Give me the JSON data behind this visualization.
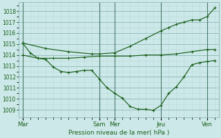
{
  "bg_color": "#cce8e8",
  "grid_color_major": "#8cb8b8",
  "grid_color_minor": "#b8d8d8",
  "vline_color": "#4a7a6a",
  "line_color": "#1a5f1a",
  "marker_color": "#1a5f1a",
  "xlabel": "Pression niveau de la mer( hPa )",
  "xlabel_color": "#1a5f1a",
  "ylabel_color": "#1a5f1a",
  "ylim": [
    1008.3,
    1018.8
  ],
  "yticks": [
    1009,
    1010,
    1011,
    1012,
    1013,
    1014,
    1015,
    1016,
    1017,
    1018
  ],
  "xtick_labels": [
    "Mar",
    "Sam",
    "Mer",
    "Jeu",
    "Ven"
  ],
  "xtick_positions": [
    0,
    10,
    12,
    18,
    24
  ],
  "xlim": [
    -0.5,
    25.5
  ],
  "line1_x": [
    0,
    1,
    2,
    3,
    4,
    5,
    6,
    7,
    8,
    9,
    10,
    11,
    12,
    13,
    14,
    15,
    16,
    17,
    18,
    19,
    20,
    21,
    22,
    23,
    24,
    25
  ],
  "line1_y": [
    1015.1,
    1014.2,
    1013.7,
    1013.6,
    1012.9,
    1012.5,
    1012.4,
    1012.5,
    1012.6,
    1012.6,
    1011.8,
    1011.0,
    1010.5,
    1010.05,
    1009.3,
    1009.05,
    1009.05,
    1008.95,
    1009.4,
    1010.5,
    1011.1,
    1012.0,
    1013.1,
    1013.3,
    1013.4,
    1013.5
  ],
  "line2_x": [
    0,
    2,
    4,
    6,
    8,
    10,
    12,
    14,
    16,
    18,
    20,
    22,
    24,
    25
  ],
  "line2_y": [
    1014.0,
    1013.7,
    1013.7,
    1013.7,
    1013.8,
    1013.9,
    1013.9,
    1013.9,
    1014.0,
    1014.0,
    1014.1,
    1014.3,
    1014.5,
    1014.5
  ],
  "line3_x": [
    0,
    3,
    6,
    9,
    10,
    12,
    14,
    16,
    18,
    19,
    20,
    21,
    22,
    23,
    24,
    25
  ],
  "line3_y": [
    1015.1,
    1014.6,
    1014.3,
    1014.1,
    1014.1,
    1014.2,
    1014.8,
    1015.5,
    1016.2,
    1016.5,
    1016.8,
    1017.0,
    1017.2,
    1017.2,
    1017.5,
    1018.3
  ]
}
